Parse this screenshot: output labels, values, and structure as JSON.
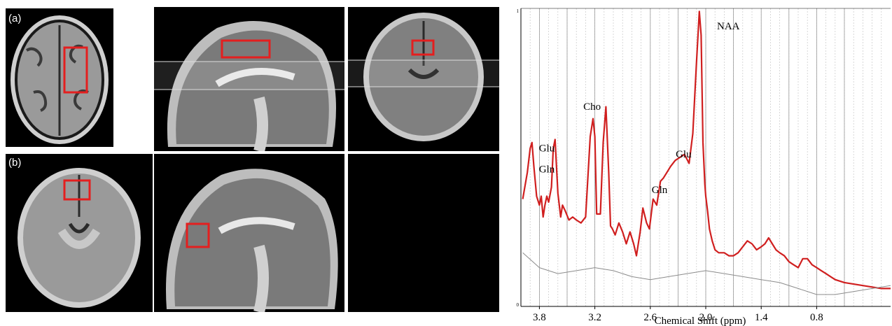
{
  "panel_labels": {
    "a": "(a)",
    "b": "(b)"
  },
  "roi_color": "#e41f1f",
  "spectrum_color": "#d01f1f",
  "baseline_color": "#8c8c8c",
  "chart_data": {
    "type": "line",
    "xlabel": "Chemical Shift (ppm)",
    "x_reversed": true,
    "xlim": [
      4.0,
      0.0
    ],
    "ylim": [
      0,
      1.0
    ],
    "x_ticks": [
      3.8,
      3.2,
      2.6,
      2.0,
      1.4,
      0.8
    ],
    "y_tick_labels": {
      "top": "1",
      "bottom": "0"
    },
    "grid": true,
    "series": [
      {
        "x": [
          3.98,
          3.93,
          3.9,
          3.88,
          3.86,
          3.83,
          3.8,
          3.78,
          3.76,
          3.74,
          3.72,
          3.7,
          3.67,
          3.65,
          3.63,
          3.6,
          3.57,
          3.55,
          3.52,
          3.48,
          3.44,
          3.4,
          3.35,
          3.3,
          3.25,
          3.22,
          3.2,
          3.18,
          3.14,
          3.11,
          3.08,
          3.05,
          3.03,
          3.01,
          2.98,
          2.94,
          2.9,
          2.86,
          2.82,
          2.78,
          2.75,
          2.71,
          2.68,
          2.64,
          2.61,
          2.57,
          2.53,
          2.49,
          2.46,
          2.42,
          2.38,
          2.33,
          2.28,
          2.23,
          2.18,
          2.14,
          2.1,
          2.07,
          2.05,
          2.03,
          2.01,
          2.0,
          1.98,
          1.96,
          1.93,
          1.9,
          1.86,
          1.8,
          1.75,
          1.7,
          1.65,
          1.6,
          1.55,
          1.5,
          1.45,
          1.4,
          1.36,
          1.32,
          1.28,
          1.24,
          1.2,
          1.15,
          1.1,
          1.05,
          1.0,
          0.95,
          0.9,
          0.85,
          0.8,
          0.75,
          0.7,
          0.65,
          0.6,
          0.5,
          0.4,
          0.3,
          0.2,
          0.1,
          0.0
        ],
        "values": [
          0.36,
          0.45,
          0.53,
          0.55,
          0.47,
          0.37,
          0.34,
          0.37,
          0.3,
          0.34,
          0.37,
          0.35,
          0.4,
          0.53,
          0.56,
          0.38,
          0.3,
          0.34,
          0.32,
          0.29,
          0.3,
          0.29,
          0.28,
          0.3,
          0.57,
          0.63,
          0.57,
          0.31,
          0.31,
          0.55,
          0.67,
          0.45,
          0.27,
          0.26,
          0.24,
          0.28,
          0.25,
          0.21,
          0.25,
          0.21,
          0.17,
          0.25,
          0.33,
          0.28,
          0.26,
          0.36,
          0.34,
          0.42,
          0.43,
          0.45,
          0.47,
          0.49,
          0.5,
          0.51,
          0.48,
          0.58,
          0.82,
          0.99,
          0.91,
          0.55,
          0.41,
          0.37,
          0.32,
          0.26,
          0.22,
          0.19,
          0.18,
          0.18,
          0.17,
          0.17,
          0.18,
          0.2,
          0.22,
          0.21,
          0.19,
          0.2,
          0.21,
          0.23,
          0.21,
          0.19,
          0.18,
          0.17,
          0.15,
          0.14,
          0.13,
          0.16,
          0.16,
          0.14,
          0.13,
          0.12,
          0.11,
          0.1,
          0.09,
          0.08,
          0.075,
          0.07,
          0.065,
          0.06,
          0.06
        ]
      },
      {
        "x": [
          3.98,
          3.8,
          3.6,
          3.4,
          3.2,
          3.0,
          2.8,
          2.6,
          2.4,
          2.2,
          2.0,
          1.8,
          1.6,
          1.4,
          1.2,
          1.0,
          0.8,
          0.6,
          0.4,
          0.2,
          0.0
        ],
        "values": [
          0.18,
          0.13,
          0.11,
          0.12,
          0.13,
          0.12,
          0.1,
          0.09,
          0.1,
          0.11,
          0.12,
          0.11,
          0.1,
          0.09,
          0.08,
          0.06,
          0.04,
          0.04,
          0.05,
          0.06,
          0.07
        ]
      }
    ],
    "annotations": [
      "NAA",
      "Cho",
      "Glu",
      "Gln",
      "Gln",
      "Glu"
    ]
  }
}
